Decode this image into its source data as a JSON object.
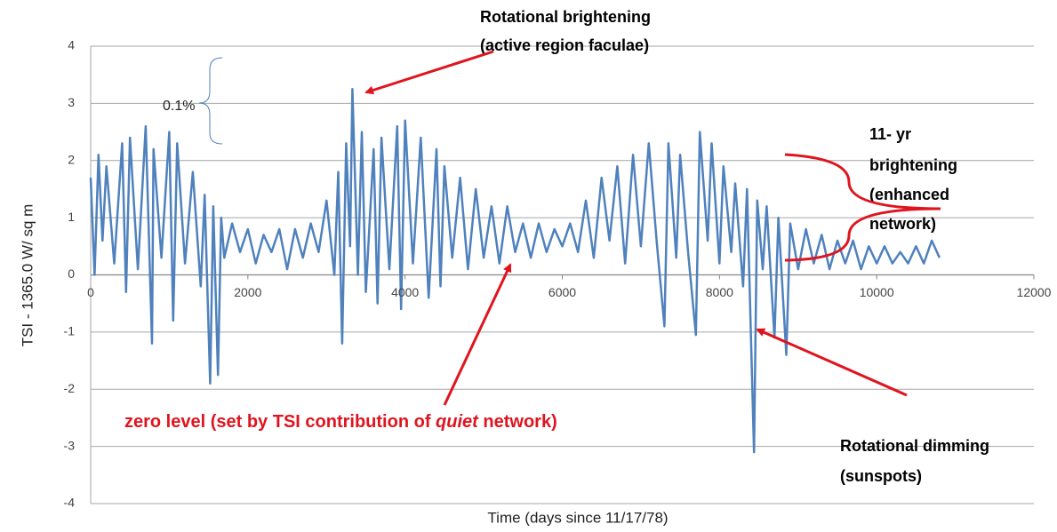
{
  "chart_data": {
    "type": "line",
    "y_label": "TSI - 1365.0 W/ sq m",
    "x_label": "Time (days since 11/17/78)",
    "color": "#4f81bd",
    "grid": true,
    "xlim": [
      0,
      12000
    ],
    "xticks": [
      0,
      2000,
      4000,
      6000,
      8000,
      10000,
      12000
    ],
    "ylim": [
      -4,
      4
    ],
    "yticks": [
      -4,
      -3,
      -2,
      -1,
      0,
      1,
      2,
      3,
      4
    ],
    "x": [
      0,
      50,
      100,
      150,
      200,
      300,
      400,
      450,
      500,
      600,
      700,
      780,
      800,
      900,
      1000,
      1050,
      1100,
      1200,
      1300,
      1400,
      1450,
      1520,
      1560,
      1620,
      1660,
      1700,
      1800,
      1900,
      2000,
      2100,
      2200,
      2300,
      2400,
      2500,
      2600,
      2700,
      2800,
      2900,
      3000,
      3100,
      3150,
      3200,
      3250,
      3300,
      3330,
      3400,
      3450,
      3500,
      3600,
      3650,
      3700,
      3800,
      3900,
      3950,
      4000,
      4100,
      4200,
      4300,
      4400,
      4450,
      4500,
      4600,
      4700,
      4800,
      4900,
      5000,
      5100,
      5200,
      5300,
      5400,
      5500,
      5600,
      5700,
      5800,
      5900,
      6000,
      6100,
      6200,
      6300,
      6400,
      6500,
      6600,
      6700,
      6800,
      6900,
      7000,
      7100,
      7200,
      7300,
      7350,
      7450,
      7500,
      7600,
      7700,
      7750,
      7850,
      7900,
      8000,
      8050,
      8150,
      8200,
      8300,
      8350,
      8440,
      8480,
      8550,
      8600,
      8700,
      8750,
      8850,
      8900,
      9000,
      9100,
      9200,
      9300,
      9400,
      9500,
      9600,
      9700,
      9800,
      9900,
      10000,
      10100,
      10200,
      10300,
      10400,
      10500,
      10600,
      10700,
      10800
    ],
    "values": [
      1.7,
      0.0,
      2.1,
      0.6,
      1.9,
      0.2,
      2.3,
      -0.3,
      2.4,
      0.1,
      2.6,
      -1.2,
      2.2,
      0.3,
      2.5,
      -0.8,
      2.3,
      0.2,
      1.8,
      -0.2,
      1.4,
      -1.9,
      1.2,
      -1.75,
      1.0,
      0.3,
      0.9,
      0.4,
      0.8,
      0.2,
      0.7,
      0.4,
      0.8,
      0.1,
      0.8,
      0.3,
      0.9,
      0.4,
      1.3,
      0.0,
      1.8,
      -1.2,
      2.3,
      0.5,
      3.25,
      0.0,
      2.5,
      -0.3,
      2.2,
      -0.5,
      2.4,
      0.1,
      2.6,
      -0.6,
      2.7,
      0.2,
      2.4,
      -0.4,
      2.2,
      -0.2,
      1.9,
      0.3,
      1.7,
      0.1,
      1.5,
      0.3,
      1.2,
      0.2,
      1.2,
      0.4,
      0.9,
      0.3,
      0.9,
      0.4,
      0.8,
      0.5,
      0.9,
      0.4,
      1.3,
      0.3,
      1.7,
      0.6,
      1.9,
      0.2,
      2.1,
      0.5,
      2.3,
      0.6,
      -0.9,
      2.3,
      0.3,
      2.1,
      0.4,
      -1.05,
      2.5,
      0.6,
      2.3,
      0.2,
      1.9,
      0.4,
      1.6,
      -0.2,
      1.5,
      -3.1,
      1.3,
      0.1,
      1.2,
      -1.1,
      1.0,
      -1.4,
      0.9,
      0.1,
      0.8,
      0.2,
      0.7,
      0.1,
      0.6,
      0.2,
      0.6,
      0.1,
      0.5,
      0.2,
      0.5,
      0.2,
      0.4,
      0.2,
      0.5,
      0.2,
      0.6,
      0.3
    ],
    "annotations": {
      "faculae": [
        "Rotational brightening",
        "(active region faculae)"
      ],
      "percent": "0.1%",
      "network": [
        "11- yr",
        "brightening",
        "(enhanced",
        "network)"
      ],
      "zero_level": [
        "zero level (set by TSI contribution of ",
        "quiet",
        " network)"
      ],
      "sunspots": [
        "Rotational dimming",
        "(sunspots)"
      ]
    }
  }
}
